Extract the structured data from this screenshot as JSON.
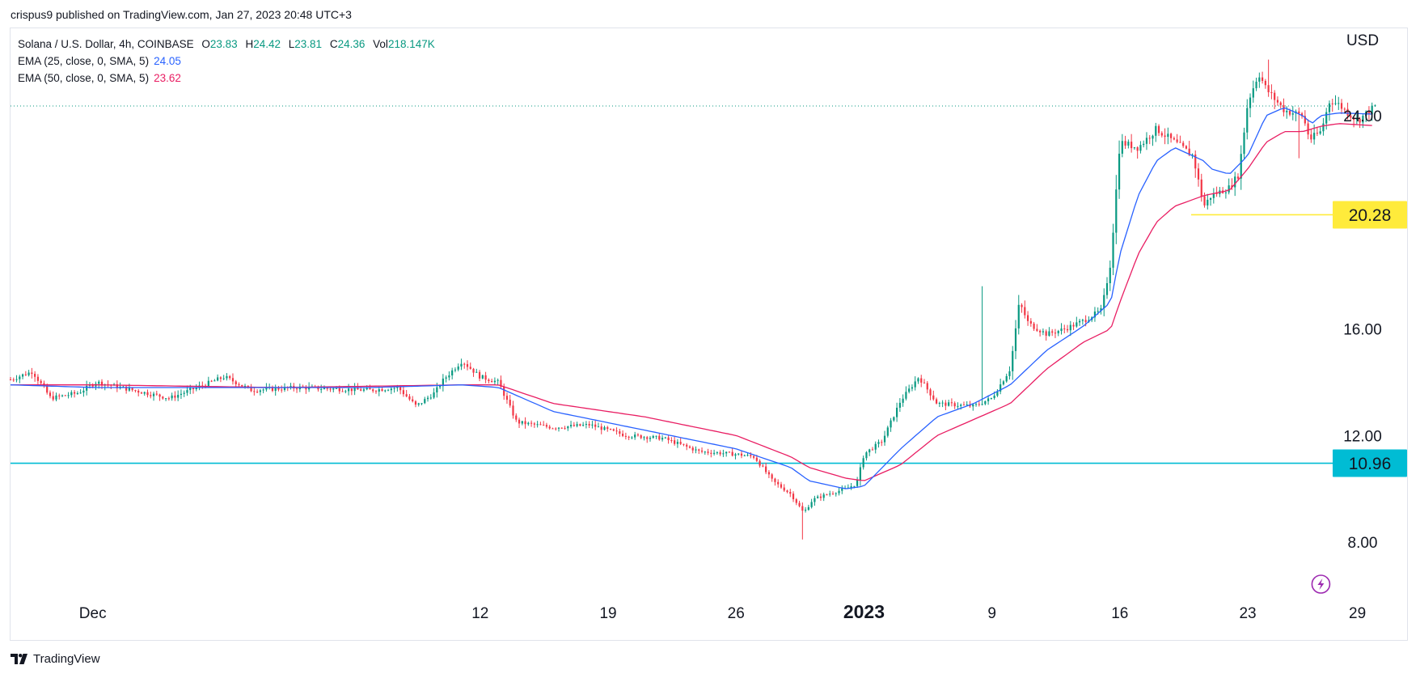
{
  "header": {
    "published_line": "crispus9 published on TradingView.com, Jan 27, 2023 20:48 UTC+3"
  },
  "legend": {
    "symbol": "Solana / U.S. Dollar, 4h, COINBASE",
    "open_label": "O",
    "open": "23.83",
    "high_label": "H",
    "high": "24.42",
    "low_label": "L",
    "low": "23.81",
    "close_label": "C",
    "close": "24.36",
    "vol_label": "Vol",
    "vol": "218.147K",
    "ema1_label": "EMA (25, close, 0, SMA, 5)",
    "ema1_value": "24.05",
    "ema2_label": "EMA (50, close, 0, SMA, 5)",
    "ema2_value": "23.62"
  },
  "footer": {
    "brand": "TradingView"
  },
  "colors": {
    "up": "#089981",
    "down": "#f23645",
    "ema25": "#2962ff",
    "ema50": "#e91e63",
    "support_line": "#00bcd4",
    "resistance_line": "#ffeb3b",
    "last_price_line": "#089981",
    "text": "#131722",
    "border": "#e0e3eb"
  },
  "icons": {
    "replay": "lightning-icon",
    "brand": "tradingview-logo-icon"
  },
  "chart_data": {
    "type": "candlestick",
    "currency_label": "USD",
    "ylim": [
      6,
      27
    ],
    "yticks": [
      "8.00",
      "12.00",
      "16.00",
      "24.00"
    ],
    "x_tick_labels": [
      {
        "t": 9.8,
        "label": "Dec",
        "bold": false
      },
      {
        "t": 31,
        "label": "12",
        "bold": false
      },
      {
        "t": 38,
        "label": "19",
        "bold": false
      },
      {
        "t": 45,
        "label": "26",
        "bold": false
      },
      {
        "t": 52,
        "label": "2023",
        "bold": true
      },
      {
        "t": 59,
        "label": "9",
        "bold": false
      },
      {
        "t": 66,
        "label": "16",
        "bold": false
      },
      {
        "t": 73,
        "label": "23",
        "bold": false
      },
      {
        "t": 79,
        "label": "29",
        "bold": false
      }
    ],
    "time_range_days": [
      5.3,
      80.0
    ],
    "last_candle_day": 77.0,
    "candle_interval": "4h",
    "price_anchors": [
      [
        5.3,
        14.1
      ],
      [
        6.5,
        14.4
      ],
      [
        7.5,
        13.4
      ],
      [
        9,
        13.6
      ],
      [
        10,
        14.0
      ],
      [
        12,
        13.7
      ],
      [
        14,
        13.4
      ],
      [
        15.5,
        13.8
      ],
      [
        17,
        14.2
      ],
      [
        18.5,
        13.7
      ],
      [
        21,
        13.8
      ],
      [
        25,
        13.7
      ],
      [
        26.5,
        13.8
      ],
      [
        27.5,
        13.1
      ],
      [
        28.5,
        13.6
      ],
      [
        29,
        14.1
      ],
      [
        30,
        14.8
      ],
      [
        31,
        14.2
      ],
      [
        32,
        14.0
      ],
      [
        33,
        12.5
      ],
      [
        35,
        12.3
      ],
      [
        37,
        12.4
      ],
      [
        39,
        12.0
      ],
      [
        41,
        11.9
      ],
      [
        43,
        11.4
      ],
      [
        45,
        11.3
      ],
      [
        46,
        11.2
      ],
      [
        47,
        10.3
      ],
      [
        48,
        9.8
      ],
      [
        48.7,
        9.1
      ],
      [
        49.2,
        9.6
      ],
      [
        50,
        9.8
      ],
      [
        51,
        10.0
      ],
      [
        51.6,
        10.2
      ],
      [
        52,
        11.3
      ],
      [
        53,
        11.8
      ],
      [
        54,
        13.3
      ],
      [
        55,
        14.2
      ],
      [
        56,
        13.2
      ],
      [
        58,
        13.1
      ],
      [
        59,
        13.4
      ],
      [
        60,
        14.5
      ],
      [
        60.5,
        17.0
      ],
      [
        61,
        16.2
      ],
      [
        62,
        15.8
      ],
      [
        63,
        16.0
      ],
      [
        64,
        16.3
      ],
      [
        65,
        16.7
      ],
      [
        65.5,
        18.5
      ],
      [
        66,
        23.0
      ],
      [
        67,
        22.8
      ],
      [
        68,
        23.5
      ],
      [
        69,
        23.0
      ],
      [
        70,
        22.5
      ],
      [
        70.6,
        20.6
      ],
      [
        71,
        21.0
      ],
      [
        72,
        21.3
      ],
      [
        72.5,
        21.8
      ],
      [
        73,
        24.5
      ],
      [
        73.6,
        25.6
      ],
      [
        74,
        25.0
      ],
      [
        75,
        24.2
      ],
      [
        76,
        24.0
      ],
      [
        76.4,
        23.1
      ],
      [
        77,
        23.4
      ],
      [
        77.5,
        24.6
      ],
      [
        78,
        24.4
      ],
      [
        79,
        23.8
      ],
      [
        80,
        24.36
      ]
    ],
    "spike_wicks": [
      {
        "t": 48.6,
        "low": 8.1
      },
      {
        "t": 58.5,
        "high": 17.6
      },
      {
        "t": 74.2,
        "high": 26.1
      },
      {
        "t": 75.8,
        "low": 22.4
      }
    ],
    "ema25": [
      [
        5.3,
        13.9
      ],
      [
        10,
        13.8
      ],
      [
        20,
        13.8
      ],
      [
        25,
        13.8
      ],
      [
        30,
        13.9
      ],
      [
        32,
        13.8
      ],
      [
        35,
        12.9
      ],
      [
        40,
        12.2
      ],
      [
        45,
        11.5
      ],
      [
        48,
        10.8
      ],
      [
        49,
        10.3
      ],
      [
        51,
        10.0
      ],
      [
        52,
        10.1
      ],
      [
        54,
        11.5
      ],
      [
        56,
        12.7
      ],
      [
        58,
        13.2
      ],
      [
        60,
        13.9
      ],
      [
        62,
        15.2
      ],
      [
        64,
        16.1
      ],
      [
        65.5,
        17.0
      ],
      [
        66,
        18.8
      ],
      [
        67,
        21.0
      ],
      [
        68,
        22.3
      ],
      [
        69,
        22.8
      ],
      [
        70.6,
        22.3
      ],
      [
        71,
        22.0
      ],
      [
        72,
        21.8
      ],
      [
        73,
        22.5
      ],
      [
        74,
        24.0
      ],
      [
        75,
        24.3
      ],
      [
        76,
        24.0
      ],
      [
        76.5,
        23.7
      ],
      [
        77,
        24.0
      ],
      [
        78,
        24.1
      ],
      [
        80,
        24.05
      ]
    ],
    "ema50": [
      [
        5.3,
        13.9
      ],
      [
        10,
        13.9
      ],
      [
        20,
        13.8
      ],
      [
        30,
        13.9
      ],
      [
        32,
        13.9
      ],
      [
        35,
        13.2
      ],
      [
        40,
        12.7
      ],
      [
        45,
        12.0
      ],
      [
        48,
        11.2
      ],
      [
        49,
        10.8
      ],
      [
        51,
        10.4
      ],
      [
        52,
        10.3
      ],
      [
        54,
        10.9
      ],
      [
        56,
        12.0
      ],
      [
        58,
        12.6
      ],
      [
        60,
        13.2
      ],
      [
        62,
        14.5
      ],
      [
        64,
        15.5
      ],
      [
        65.5,
        16.0
      ],
      [
        66,
        17.0
      ],
      [
        67,
        18.8
      ],
      [
        68,
        20.0
      ],
      [
        69,
        20.6
      ],
      [
        70.6,
        21.0
      ],
      [
        72,
        21.2
      ],
      [
        73,
        22.0
      ],
      [
        74,
        23.0
      ],
      [
        75,
        23.4
      ],
      [
        76,
        23.4
      ],
      [
        77,
        23.6
      ],
      [
        78,
        23.7
      ],
      [
        80,
        23.62
      ]
    ],
    "horizontal_lines": [
      {
        "name": "support",
        "value": 10.96,
        "label": "10.96",
        "t_from": 5.3,
        "color": "#00bcd4"
      },
      {
        "name": "resistance",
        "value": 20.28,
        "label": "20.28",
        "t_from": 69.9,
        "t_to": 80,
        "color": "#ffeb3b"
      }
    ],
    "last_price": 24.36
  }
}
